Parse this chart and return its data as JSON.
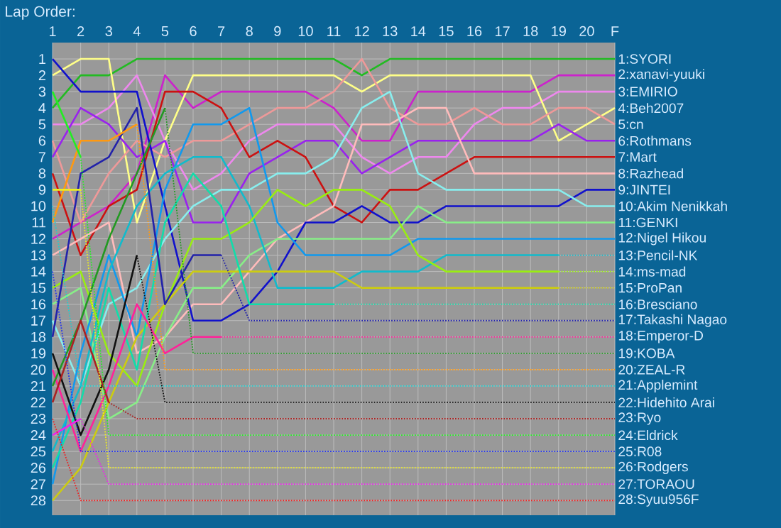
{
  "chart_data": {
    "type": "line",
    "title": "Lap Order:",
    "categories": [
      "1",
      "2",
      "3",
      "4",
      "5",
      "6",
      "7",
      "8",
      "9",
      "10",
      "11",
      "12",
      "13",
      "14",
      "15",
      "16",
      "17",
      "18",
      "19",
      "20",
      "F"
    ],
    "ylim": [
      28.9,
      0
    ],
    "yticks": [
      1,
      2,
      3,
      4,
      5,
      6,
      7,
      8,
      9,
      10,
      11,
      12,
      13,
      14,
      15,
      16,
      17,
      18,
      19,
      20,
      21,
      22,
      23,
      24,
      25,
      26,
      27,
      28
    ],
    "grid": true,
    "legend": false,
    "series": [
      {
        "name": "1:SYORI",
        "color": "#22bb22",
        "values": [
          4,
          2,
          2,
          1,
          1,
          1,
          1,
          1,
          1,
          1,
          1,
          2,
          1,
          1,
          1,
          1,
          1,
          1,
          1,
          1,
          1
        ]
      },
      {
        "name": "2:xanavi-yuuki",
        "color": "#cc22cc",
        "values": [
          12,
          11,
          10,
          8,
          2,
          4,
          3,
          3,
          3,
          3,
          4,
          6,
          6,
          3,
          3,
          3,
          3,
          3,
          2,
          2,
          2
        ]
      },
      {
        "name": "3:EMIRIO",
        "color": "#ee88ee",
        "values": [
          5,
          5,
          4,
          2,
          6,
          9,
          8,
          6,
          5,
          5,
          5,
          7,
          8,
          7,
          7,
          5,
          4,
          4,
          3,
          3,
          3
        ]
      },
      {
        "name": "4:Beh2007",
        "color": "#ffff88",
        "values": [
          2,
          1,
          1,
          11,
          6,
          2,
          2,
          2,
          2,
          2,
          2,
          3,
          2,
          2,
          2,
          2,
          2,
          2,
          6,
          5,
          4
        ]
      },
      {
        "name": "5:cn",
        "color": "#ee9999",
        "values": [
          6,
          11,
          8,
          6,
          7,
          6,
          6,
          5,
          4,
          4,
          3,
          1,
          4,
          5,
          5,
          4,
          5,
          5,
          4,
          4,
          5
        ]
      },
      {
        "name": "6:Rothmans",
        "color": "#9922ee",
        "values": [
          7,
          4,
          5,
          7,
          6,
          11,
          11,
          8,
          7,
          6,
          6,
          8,
          7,
          6,
          6,
          6,
          6,
          6,
          5,
          6,
          6
        ]
      },
      {
        "name": "7:Mart",
        "color": "#cc1111",
        "values": [
          8,
          13,
          10,
          9,
          3,
          3,
          4,
          7,
          6,
          7,
          10,
          11,
          9,
          9,
          8,
          7,
          7,
          7,
          7,
          7,
          7
        ]
      },
      {
        "name": "8:Razhead",
        "color": "#ffbbbb",
        "values": [
          13,
          12,
          11,
          19,
          18,
          16,
          16,
          14,
          12,
          11,
          10,
          5,
          5,
          4,
          4,
          8,
          8,
          8,
          8,
          8,
          8
        ]
      },
      {
        "name": "9:JINTEI",
        "color": "#1111cc",
        "values": [
          1,
          3,
          3,
          3,
          10,
          17,
          17,
          16,
          14,
          11,
          11,
          10,
          11,
          11,
          10,
          10,
          10,
          10,
          10,
          9,
          9
        ]
      },
      {
        "name": "10:Akim Nenikkah",
        "color": "#88eeee",
        "values": [
          17,
          21,
          16,
          15,
          12,
          10,
          9,
          9,
          8,
          8,
          7,
          4,
          3,
          8,
          9,
          9,
          9,
          9,
          9,
          10,
          10
        ]
      },
      {
        "name": "11:GENKI",
        "color": "#88ee88",
        "values": [
          16,
          15,
          23,
          22,
          18,
          15,
          15,
          13,
          12,
          12,
          12,
          12,
          12,
          10,
          11,
          11,
          11,
          11,
          11,
          11,
          11
        ]
      },
      {
        "name": "12:Nigel Hikou",
        "color": "#1199ee",
        "values": [
          27,
          19,
          13,
          18,
          9,
          5,
          5,
          4,
          11,
          13,
          13,
          13,
          13,
          12,
          12,
          12,
          12,
          12,
          12,
          12,
          12
        ]
      },
      {
        "color": "#11bbcc",
        "values": [
          25,
          21,
          14,
          10,
          8,
          7,
          7,
          10,
          15,
          15,
          15,
          14,
          14,
          14,
          13,
          13,
          13,
          13,
          13,
          null,
          null
        ]
      },
      {
        "name": "13:Pencil-NK",
        "color": "#11bbcc",
        "line_style": "dotted",
        "values": [
          null,
          null,
          null,
          null,
          null,
          null,
          null,
          null,
          null,
          null,
          null,
          null,
          null,
          null,
          null,
          null,
          null,
          null,
          13,
          13,
          13
        ]
      },
      {
        "color": "#99ee11",
        "values": [
          15,
          14,
          19,
          21,
          16,
          12,
          12,
          11,
          9,
          10,
          9,
          9,
          10,
          13,
          14,
          14,
          14,
          14,
          14,
          null,
          null
        ]
      },
      {
        "name": "14:ms-mad",
        "color": "#99ee11",
        "line_style": "dotted",
        "values": [
          null,
          null,
          null,
          null,
          null,
          null,
          null,
          null,
          null,
          null,
          null,
          null,
          null,
          null,
          null,
          null,
          null,
          null,
          14,
          14,
          14
        ]
      },
      {
        "color": "#cccc11",
        "values": [
          28,
          26,
          22,
          18,
          16,
          14,
          14,
          14,
          14,
          14,
          14,
          15,
          15,
          15,
          15,
          15,
          15,
          15,
          15,
          null,
          null
        ]
      },
      {
        "name": "15:ProPan",
        "color": "#cccc11",
        "line_style": "dotted",
        "values": [
          null,
          null,
          null,
          null,
          null,
          null,
          null,
          null,
          null,
          null,
          null,
          null,
          null,
          null,
          null,
          null,
          null,
          null,
          15,
          15,
          15
        ]
      },
      {
        "color": "#11ddaa",
        "values": [
          26,
          22,
          15,
          20,
          11,
          8,
          10,
          16,
          16,
          16,
          16,
          null,
          null,
          null,
          null,
          null,
          null,
          null,
          null,
          null,
          null
        ]
      },
      {
        "name": "16:Bresciano",
        "color": "#11ddaa",
        "line_style": "dotted",
        "values": [
          null,
          null,
          null,
          null,
          null,
          null,
          null,
          null,
          null,
          null,
          16,
          16,
          16,
          16,
          16,
          16,
          16,
          16,
          16,
          16,
          16
        ]
      },
      {
        "color": "#2222aa",
        "values": [
          18,
          8,
          7,
          4,
          16,
          13,
          13,
          null,
          null,
          null,
          null,
          null,
          null,
          null,
          null,
          null,
          null,
          null,
          null,
          null,
          null
        ]
      },
      {
        "name": "17:Takashi Nagao",
        "color": "#2222aa",
        "line_style": "dotted",
        "values": [
          null,
          null,
          null,
          null,
          null,
          null,
          13,
          17,
          17,
          17,
          17,
          17,
          17,
          17,
          17,
          17,
          17,
          17,
          17,
          17,
          17
        ]
      },
      {
        "color": "#ff2299",
        "values": [
          20,
          25,
          21,
          16,
          19,
          18,
          18,
          null,
          null,
          null,
          null,
          null,
          null,
          null,
          null,
          null,
          null,
          null,
          null,
          null,
          null
        ]
      },
      {
        "name": "18:Emperor-D",
        "color": "#ff2299",
        "line_style": "dotted",
        "values": [
          null,
          null,
          null,
          null,
          null,
          null,
          18,
          18,
          18,
          18,
          18,
          18,
          18,
          18,
          18,
          18,
          18,
          18,
          18,
          18,
          18
        ]
      },
      {
        "color": "#229922",
        "values": [
          21,
          17,
          12,
          8,
          4,
          null,
          null,
          null,
          null,
          null,
          null,
          null,
          null,
          null,
          null,
          null,
          null,
          null,
          null,
          null,
          null
        ]
      },
      {
        "name": "19:KOBA",
        "color": "#229922",
        "line_style": "dotted",
        "values": [
          null,
          null,
          null,
          null,
          4,
          19,
          19,
          19,
          19,
          19,
          19,
          19,
          19,
          19,
          19,
          19,
          19,
          19,
          19,
          19,
          19
        ]
      },
      {
        "color": "#ff9911",
        "values": [
          11,
          6,
          6,
          5,
          null,
          null,
          null,
          null,
          null,
          null,
          null,
          null,
          null,
          null,
          null,
          null,
          null,
          null,
          null,
          null,
          null
        ]
      },
      {
        "name": "20:ZEAL-R",
        "color": "#ff9911",
        "line_style": "dotted",
        "values": [
          null,
          null,
          null,
          5,
          20,
          20,
          20,
          20,
          20,
          20,
          20,
          20,
          20,
          20,
          20,
          20,
          20,
          20,
          20,
          20,
          20
        ]
      },
      {
        "name": "21:Applemint",
        "color": "#22cccc",
        "line_style": "dotted",
        "values": [
          10,
          21,
          21,
          21,
          21,
          21,
          21,
          21,
          21,
          21,
          21,
          21,
          21,
          21,
          21,
          21,
          21,
          21,
          21,
          21,
          21
        ]
      },
      {
        "color": "#111111",
        "values": [
          19,
          24,
          20,
          13,
          null,
          null,
          null,
          null,
          null,
          null,
          null,
          null,
          null,
          null,
          null,
          null,
          null,
          null,
          null,
          null,
          null
        ]
      },
      {
        "name": "22:Hidehito Arai",
        "color": "#111111",
        "line_style": "dotted",
        "values": [
          null,
          null,
          null,
          13,
          22,
          22,
          22,
          22,
          22,
          22,
          22,
          22,
          22,
          22,
          22,
          22,
          22,
          22,
          22,
          22,
          22
        ]
      },
      {
        "color": "#aa2222",
        "values": [
          22,
          17,
          22,
          null,
          null,
          null,
          null,
          null,
          null,
          null,
          null,
          null,
          null,
          null,
          null,
          null,
          null,
          null,
          null,
          null,
          null
        ]
      },
      {
        "name": "23:Ryo",
        "color": "#aa2222",
        "line_style": "dotted",
        "values": [
          null,
          null,
          22,
          23,
          23,
          23,
          23,
          23,
          23,
          23,
          23,
          23,
          23,
          23,
          23,
          23,
          23,
          23,
          23,
          23,
          23
        ]
      },
      {
        "color": "#22ee22",
        "values": [
          3,
          7,
          null,
          null,
          null,
          null,
          null,
          null,
          null,
          null,
          null,
          null,
          null,
          null,
          null,
          null,
          null,
          null,
          null,
          null,
          null
        ]
      },
      {
        "name": "24:Eldrick",
        "color": "#22ee22",
        "line_style": "dotted",
        "values": [
          null,
          7,
          24,
          24,
          24,
          24,
          24,
          24,
          24,
          24,
          24,
          24,
          24,
          24,
          24,
          24,
          24,
          24,
          24,
          24,
          24
        ]
      },
      {
        "name": "25:R08",
        "color": "#2233ee",
        "line_style": "dotted",
        "values": [
          14,
          25,
          25,
          25,
          25,
          25,
          25,
          25,
          25,
          25,
          25,
          25,
          25,
          25,
          25,
          25,
          25,
          25,
          25,
          25,
          25
        ]
      },
      {
        "color": "#eeee22",
        "values": [
          9,
          9,
          null,
          null,
          null,
          null,
          null,
          null,
          null,
          null,
          null,
          null,
          null,
          null,
          null,
          null,
          null,
          null,
          null,
          null,
          null
        ]
      },
      {
        "name": "26:Rodgers",
        "color": "#eeee22",
        "line_style": "dotted",
        "values": [
          null,
          9,
          26,
          26,
          26,
          26,
          26,
          26,
          26,
          26,
          26,
          26,
          26,
          26,
          26,
          26,
          26,
          26,
          26,
          26,
          26
        ]
      },
      {
        "color": "#ee22ee",
        "values": [
          24,
          23,
          null,
          null,
          null,
          null,
          null,
          null,
          null,
          null,
          null,
          null,
          null,
          null,
          null,
          null,
          null,
          null,
          null,
          null,
          null
        ]
      },
      {
        "name": "27:TORAOU",
        "color": "#ee22ee",
        "line_style": "dotted",
        "values": [
          null,
          23,
          27,
          27,
          27,
          27,
          27,
          27,
          27,
          27,
          27,
          27,
          27,
          27,
          27,
          27,
          27,
          27,
          27,
          27,
          27
        ]
      },
      {
        "name": "28:Syuu956F",
        "color": "#ee2222",
        "line_style": "dotted",
        "values": [
          23,
          28,
          28,
          28,
          28,
          28,
          28,
          28,
          28,
          28,
          28,
          28,
          28,
          28,
          28,
          28,
          28,
          28,
          28,
          28,
          28
        ]
      }
    ]
  }
}
